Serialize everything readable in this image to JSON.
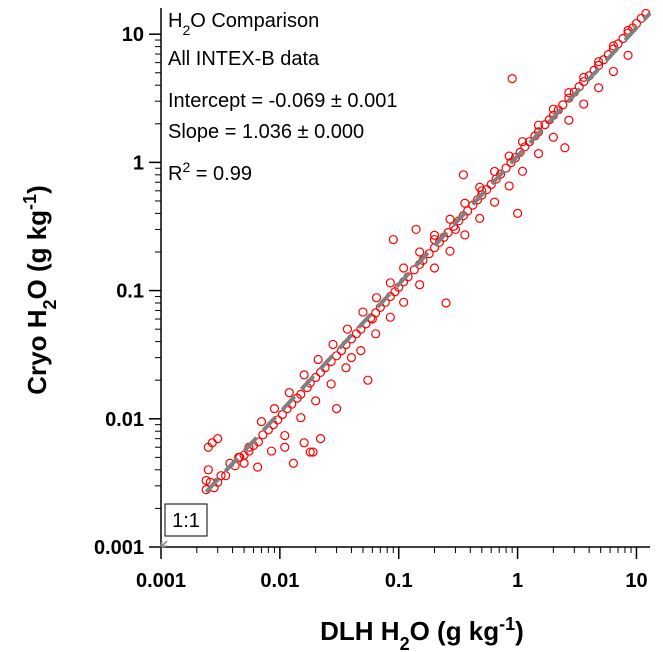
{
  "chart_data": {
    "type": "scatter",
    "title": "",
    "x_scale": "log",
    "y_scale": "log",
    "xlim": [
      0.001,
      13
    ],
    "ylim": [
      0.001,
      16
    ],
    "xticks": [
      0.001,
      0.01,
      0.1,
      1,
      10
    ],
    "yticks": [
      0.001,
      0.01,
      0.1,
      1,
      10
    ],
    "xtick_labels": [
      "0.001",
      "0.01",
      "0.1",
      "1",
      "10"
    ],
    "ytick_labels": [
      "0.001",
      "0.01",
      "0.1",
      "1",
      "10"
    ],
    "xlabel": {
      "pre": "DLH  H",
      "sub": "2",
      "mid": "O  (g kg",
      "sup": "-1",
      "post": ")"
    },
    "ylabel": {
      "pre": "Cryo H",
      "sub": "2",
      "mid": "O  (g kg",
      "sup": "-1",
      "post": ")"
    },
    "grid": false,
    "legend": "none",
    "marker_color": "#ff0000",
    "fit_line_color": "#808080",
    "annotations": {
      "line1": {
        "pre": "H",
        "sub": "2",
        "post": "O Comparison"
      },
      "line2": "All INTEX-B data",
      "line3": "Intercept = -0.069 ± 0.001",
      "line4": "Slope = 1.036 ± 0.000",
      "line5": {
        "pre": "R",
        "sup": "2",
        "post": " = 0.99"
      }
    },
    "ref_label": "1:1",
    "fit": {
      "slope": 1.036,
      "intercept": -0.069
    },
    "series": [
      {
        "x": [
          0.0024,
          0.0024,
          0.0025,
          0.0026,
          0.0028,
          0.003,
          0.0032,
          0.0035,
          0.0038,
          0.0042,
          0.0046,
          0.005,
          0.0055,
          0.006,
          0.0066,
          0.0072,
          0.008,
          0.0088,
          0.0096,
          0.0105,
          0.0115,
          0.0126,
          0.014,
          0.015,
          0.017,
          0.018,
          0.02,
          0.022,
          0.024,
          0.027,
          0.03,
          0.033,
          0.036,
          0.04,
          0.044,
          0.048,
          0.053,
          0.058,
          0.064,
          0.07,
          0.077,
          0.085,
          0.093,
          0.1,
          0.11,
          0.12,
          0.135,
          0.15,
          0.16,
          0.18,
          0.2,
          0.22,
          0.24,
          0.26,
          0.29,
          0.32,
          0.35,
          0.38,
          0.42,
          0.46,
          0.5,
          0.55,
          0.6,
          0.66,
          0.72,
          0.8,
          0.88,
          0.96,
          1.05,
          1.15,
          1.26,
          1.4,
          1.5,
          1.7,
          1.85,
          2.0,
          2.2,
          2.4,
          2.7,
          3.0,
          3.3,
          3.6,
          4.0,
          4.4,
          4.8,
          5.3,
          5.8,
          6.4,
          7.0,
          7.7,
          8.5,
          9.3,
          10,
          11,
          12,
          0.007,
          0.009,
          0.012,
          0.016,
          0.021,
          0.028,
          0.037,
          0.05,
          0.065,
          0.085,
          0.11,
          0.15,
          0.2,
          0.27,
          0.36,
          0.48,
          0.64,
          0.85,
          1.1,
          1.5,
          2.0,
          2.7,
          3.6,
          4.8,
          6.4,
          8.5,
          0.0065,
          0.0085,
          0.011,
          0.015,
          0.02,
          0.027,
          0.036,
          0.048,
          0.064,
          0.085,
          0.11,
          0.15,
          0.2,
          0.27,
          0.36,
          0.48,
          0.64,
          0.85,
          1.1,
          1.5,
          2.0,
          2.7,
          3.6,
          4.8,
          6.4,
          8.5,
          0.0025,
          0.0027,
          0.003,
          0.0045,
          0.005,
          0.0055,
          0.011,
          0.013,
          0.016,
          0.019,
          0.022,
          0.03,
          0.04,
          0.06,
          0.09,
          0.14,
          0.2,
          0.3,
          0.35,
          0.5,
          1.0,
          2.5,
          0.9,
          0.25,
          0.055,
          0.018
        ],
        "y": [
          0.0028,
          0.0033,
          0.004,
          0.0032,
          0.0029,
          0.0032,
          0.0036,
          0.0036,
          0.0045,
          0.0043,
          0.005,
          0.0052,
          0.0056,
          0.0062,
          0.0066,
          0.0075,
          0.0082,
          0.009,
          0.0098,
          0.0108,
          0.012,
          0.013,
          0.0145,
          0.0155,
          0.0175,
          0.019,
          0.021,
          0.023,
          0.025,
          0.028,
          0.031,
          0.034,
          0.038,
          0.042,
          0.046,
          0.05,
          0.055,
          0.061,
          0.067,
          0.074,
          0.081,
          0.09,
          0.098,
          0.106,
          0.117,
          0.128,
          0.145,
          0.16,
          0.172,
          0.194,
          0.216,
          0.238,
          0.26,
          0.283,
          0.317,
          0.35,
          0.384,
          0.418,
          0.464,
          0.51,
          0.556,
          0.614,
          0.672,
          0.741,
          0.81,
          0.903,
          0.996,
          1.09,
          1.2,
          1.32,
          1.45,
          1.61,
          1.73,
          1.97,
          2.15,
          2.33,
          2.57,
          2.81,
          3.17,
          3.53,
          3.9,
          4.26,
          4.74,
          5.23,
          5.71,
          6.32,
          6.93,
          7.66,
          8.4,
          9.25,
          10.2,
          11.2,
          12.1,
          13.3,
          14.5,
          0.0095,
          0.012,
          0.016,
          0.022,
          0.029,
          0.038,
          0.05,
          0.068,
          0.088,
          0.115,
          0.15,
          0.2,
          0.27,
          0.36,
          0.48,
          0.64,
          0.85,
          1.12,
          1.45,
          1.95,
          2.6,
          3.5,
          4.6,
          6.1,
          8.1,
          10.7,
          0.0042,
          0.0056,
          0.0074,
          0.0102,
          0.0138,
          0.0187,
          0.025,
          0.034,
          0.046,
          0.062,
          0.081,
          0.111,
          0.15,
          0.203,
          0.272,
          0.366,
          0.49,
          0.655,
          0.852,
          1.17,
          1.57,
          2.13,
          2.85,
          3.82,
          5.12,
          6.83,
          0.006,
          0.0065,
          0.007,
          0.005,
          0.0045,
          0.006,
          0.006,
          0.0045,
          0.0065,
          0.0055,
          0.007,
          0.012,
          0.03,
          0.06,
          0.25,
          0.3,
          0.25,
          0.3,
          0.8,
          0.6,
          0.4,
          1.3,
          4.5,
          0.08,
          0.02,
          0.0055
        ]
      }
    ]
  }
}
